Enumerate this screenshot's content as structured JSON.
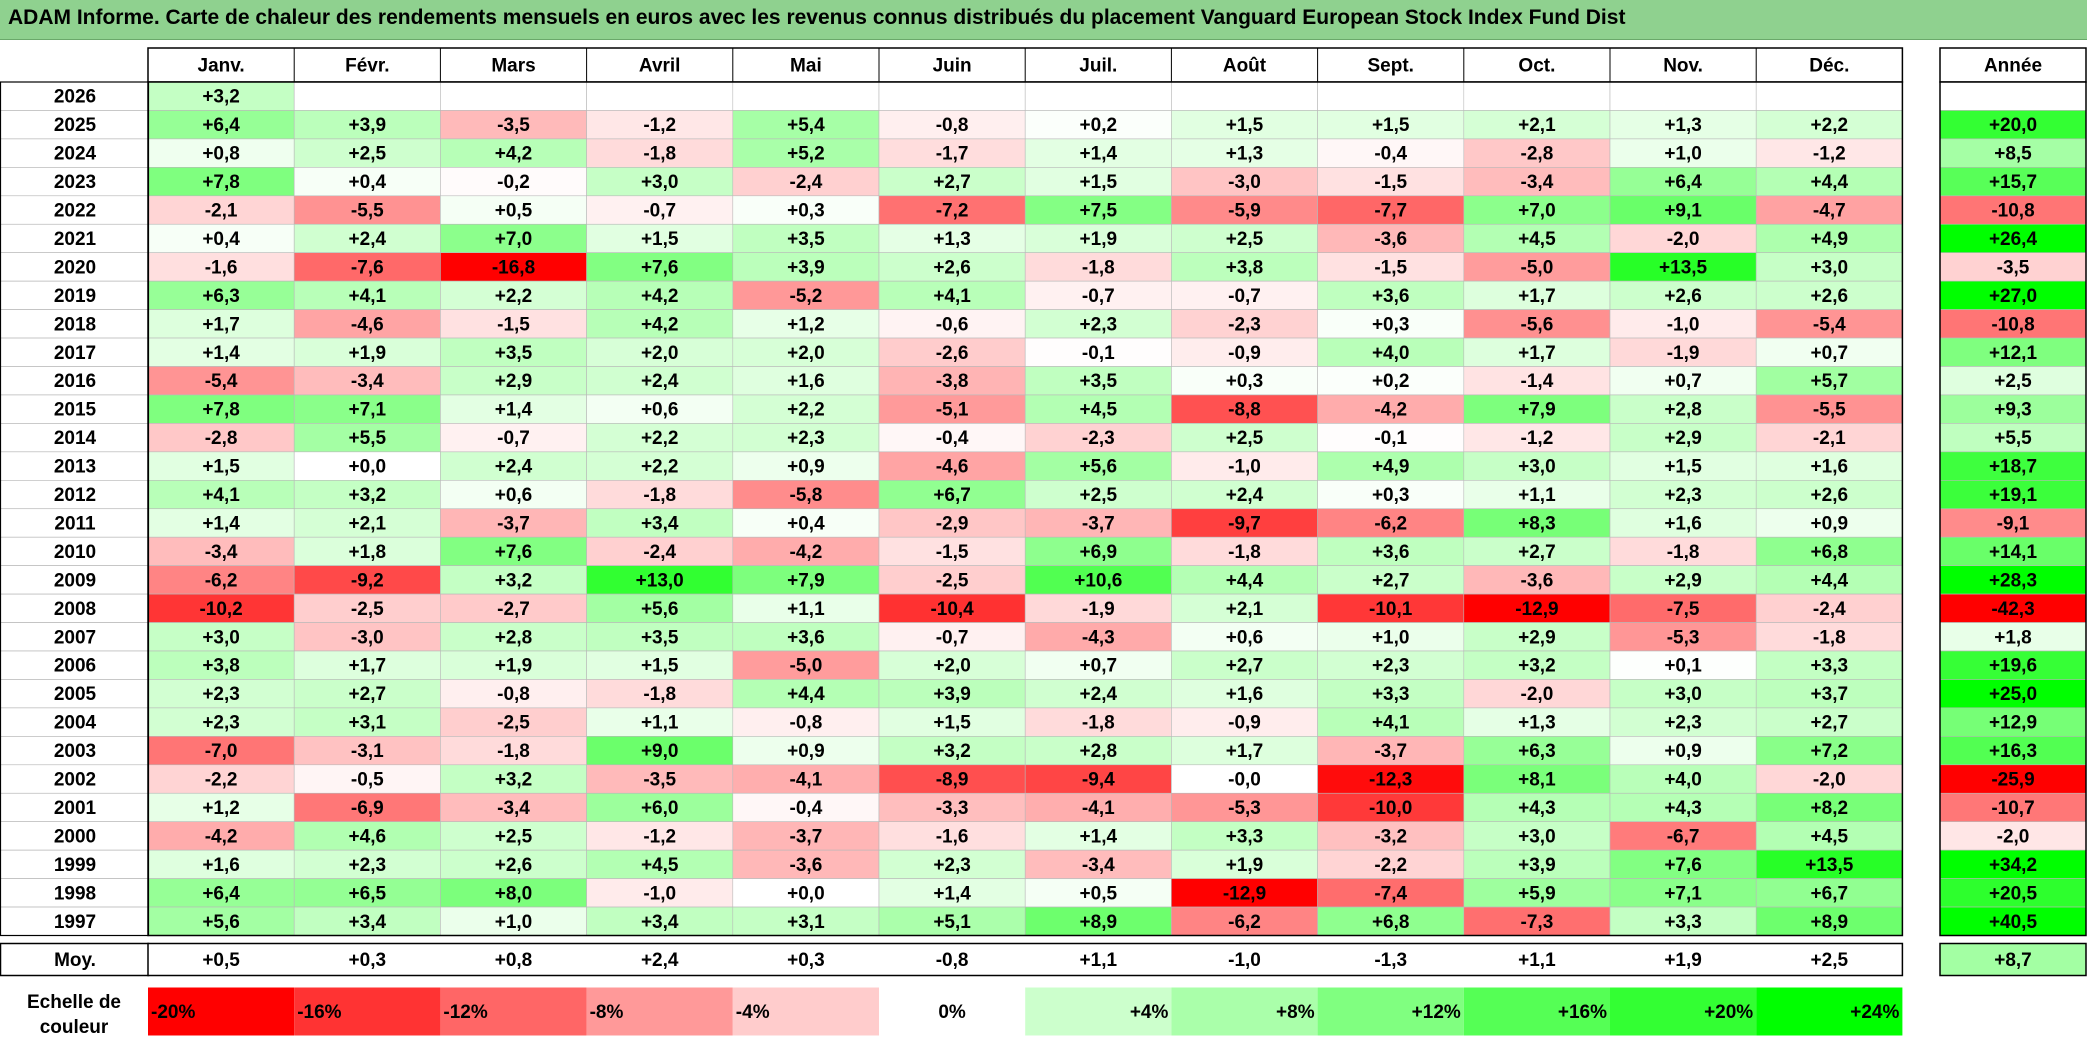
{
  "title": "ADAM Informe. Carte de chaleur des rendements mensuels en euros avec les revenus connus distribués du placement Vanguard European Stock Index Fund Dist",
  "chart_data": {
    "type": "heatmap",
    "months": [
      "Janv.",
      "Févr.",
      "Mars",
      "Avril",
      "Mai",
      "Juin",
      "Juil.",
      "Août",
      "Sept.",
      "Oct.",
      "Nov.",
      "Déc."
    ],
    "annual_label": "Année",
    "average_label": "Moy.",
    "scale_label": "Echelle de couleur",
    "rows": [
      {
        "year": "2026",
        "values": [
          "+3,2",
          "",
          "",
          "",
          "",
          "",
          "",
          "",
          "",
          "",
          "",
          ""
        ],
        "annual": ""
      },
      {
        "year": "2025",
        "values": [
          "+6,4",
          "+3,9",
          "-3,5",
          "-1,2",
          "+5,4",
          "-0,8",
          "+0,2",
          "+1,5",
          "+1,5",
          "+2,1",
          "+1,3",
          "+2,2"
        ],
        "annual": "+20,0"
      },
      {
        "year": "2024",
        "values": [
          "+0,8",
          "+2,5",
          "+4,2",
          "-1,8",
          "+5,2",
          "-1,7",
          "+1,4",
          "+1,3",
          "-0,4",
          "-2,8",
          "+1,0",
          "-1,2"
        ],
        "annual": "+8,5"
      },
      {
        "year": "2023",
        "values": [
          "+7,8",
          "+0,4",
          "-0,2",
          "+3,0",
          "-2,4",
          "+2,7",
          "+1,5",
          "-3,0",
          "-1,5",
          "-3,4",
          "+6,4",
          "+4,4"
        ],
        "annual": "+15,7"
      },
      {
        "year": "2022",
        "values": [
          "-2,1",
          "-5,5",
          "+0,5",
          "-0,7",
          "+0,3",
          "-7,2",
          "+7,5",
          "-5,9",
          "-7,7",
          "+7,0",
          "+9,1",
          "-4,7"
        ],
        "annual": "-10,8"
      },
      {
        "year": "2021",
        "values": [
          "+0,4",
          "+2,4",
          "+7,0",
          "+1,5",
          "+3,5",
          "+1,3",
          "+1,9",
          "+2,5",
          "-3,6",
          "+4,5",
          "-2,0",
          "+4,9"
        ],
        "annual": "+26,4"
      },
      {
        "year": "2020",
        "values": [
          "-1,6",
          "-7,6",
          "-16,8",
          "+7,6",
          "+3,9",
          "+2,6",
          "-1,8",
          "+3,8",
          "-1,5",
          "-5,0",
          "+13,5",
          "+3,0"
        ],
        "annual": "-3,5"
      },
      {
        "year": "2019",
        "values": [
          "+6,3",
          "+4,1",
          "+2,2",
          "+4,2",
          "-5,2",
          "+4,1",
          "-0,7",
          "-0,7",
          "+3,6",
          "+1,7",
          "+2,6",
          "+2,6"
        ],
        "annual": "+27,0"
      },
      {
        "year": "2018",
        "values": [
          "+1,7",
          "-4,6",
          "-1,5",
          "+4,2",
          "+1,2",
          "-0,6",
          "+2,3",
          "-2,3",
          "+0,3",
          "-5,6",
          "-1,0",
          "-5,4"
        ],
        "annual": "-10,8"
      },
      {
        "year": "2017",
        "values": [
          "+1,4",
          "+1,9",
          "+3,5",
          "+2,0",
          "+2,0",
          "-2,6",
          "-0,1",
          "-0,9",
          "+4,0",
          "+1,7",
          "-1,9",
          "+0,7"
        ],
        "annual": "+12,1"
      },
      {
        "year": "2016",
        "values": [
          "-5,4",
          "-3,4",
          "+2,9",
          "+2,4",
          "+1,6",
          "-3,8",
          "+3,5",
          "+0,3",
          "+0,2",
          "-1,4",
          "+0,7",
          "+5,7"
        ],
        "annual": "+2,5"
      },
      {
        "year": "2015",
        "values": [
          "+7,8",
          "+7,1",
          "+1,4",
          "+0,6",
          "+2,2",
          "-5,1",
          "+4,5",
          "-8,8",
          "-4,2",
          "+7,9",
          "+2,8",
          "-5,5"
        ],
        "annual": "+9,3"
      },
      {
        "year": "2014",
        "values": [
          "-2,8",
          "+5,5",
          "-0,7",
          "+2,2",
          "+2,3",
          "-0,4",
          "-2,3",
          "+2,5",
          "-0,1",
          "-1,2",
          "+2,9",
          "-2,1"
        ],
        "annual": "+5,5"
      },
      {
        "year": "2013",
        "values": [
          "+1,5",
          "+0,0",
          "+2,4",
          "+2,2",
          "+0,9",
          "-4,6",
          "+5,6",
          "-1,0",
          "+4,9",
          "+3,0",
          "+1,5",
          "+1,6"
        ],
        "annual": "+18,7"
      },
      {
        "year": "2012",
        "values": [
          "+4,1",
          "+3,2",
          "+0,6",
          "-1,8",
          "-5,8",
          "+6,7",
          "+2,5",
          "+2,4",
          "+0,3",
          "+1,1",
          "+2,3",
          "+2,6"
        ],
        "annual": "+19,1"
      },
      {
        "year": "2011",
        "values": [
          "+1,4",
          "+2,1",
          "-3,7",
          "+3,4",
          "+0,4",
          "-2,9",
          "-3,7",
          "-9,7",
          "-6,2",
          "+8,3",
          "+1,6",
          "+0,9"
        ],
        "annual": "-9,1"
      },
      {
        "year": "2010",
        "values": [
          "-3,4",
          "+1,8",
          "+7,6",
          "-2,4",
          "-4,2",
          "-1,5",
          "+6,9",
          "-1,8",
          "+3,6",
          "+2,7",
          "-1,8",
          "+6,8"
        ],
        "annual": "+14,1"
      },
      {
        "year": "2009",
        "values": [
          "-6,2",
          "-9,2",
          "+3,2",
          "+13,0",
          "+7,9",
          "-2,5",
          "+10,6",
          "+4,4",
          "+2,7",
          "-3,6",
          "+2,9",
          "+4,4"
        ],
        "annual": "+28,3"
      },
      {
        "year": "2008",
        "values": [
          "-10,2",
          "-2,5",
          "-2,7",
          "+5,6",
          "+1,1",
          "-10,4",
          "-1,9",
          "+2,1",
          "-10,1",
          "-12,9",
          "-7,5",
          "-2,4"
        ],
        "annual": "-42,3"
      },
      {
        "year": "2007",
        "values": [
          "+3,0",
          "-3,0",
          "+2,8",
          "+3,5",
          "+3,6",
          "-0,7",
          "-4,3",
          "+0,6",
          "+1,0",
          "+2,9",
          "-5,3",
          "-1,8"
        ],
        "annual": "+1,8"
      },
      {
        "year": "2006",
        "values": [
          "+3,8",
          "+1,7",
          "+1,9",
          "+1,5",
          "-5,0",
          "+2,0",
          "+0,7",
          "+2,7",
          "+2,3",
          "+3,2",
          "+0,1",
          "+3,3"
        ],
        "annual": "+19,6"
      },
      {
        "year": "2005",
        "values": [
          "+2,3",
          "+2,7",
          "-0,8",
          "-1,8",
          "+4,4",
          "+3,9",
          "+2,4",
          "+1,6",
          "+3,3",
          "-2,0",
          "+3,0",
          "+3,7"
        ],
        "annual": "+25,0"
      },
      {
        "year": "2004",
        "values": [
          "+2,3",
          "+3,1",
          "-2,5",
          "+1,1",
          "-0,8",
          "+1,5",
          "-1,8",
          "-0,9",
          "+4,1",
          "+1,3",
          "+2,3",
          "+2,7"
        ],
        "annual": "+12,9"
      },
      {
        "year": "2003",
        "values": [
          "-7,0",
          "-3,1",
          "-1,8",
          "+9,0",
          "+0,9",
          "+3,2",
          "+2,8",
          "+1,7",
          "-3,7",
          "+6,3",
          "+0,9",
          "+7,2"
        ],
        "annual": "+16,3"
      },
      {
        "year": "2002",
        "values": [
          "-2,2",
          "-0,5",
          "+3,2",
          "-3,5",
          "-4,1",
          "-8,9",
          "-9,4",
          "-0,0",
          "-12,3",
          "+8,1",
          "+4,0",
          "-2,0"
        ],
        "annual": "-25,9"
      },
      {
        "year": "2001",
        "values": [
          "+1,2",
          "-6,9",
          "-3,4",
          "+6,0",
          "-0,4",
          "-3,3",
          "-4,1",
          "-5,3",
          "-10,0",
          "+4,3",
          "+4,3",
          "+8,2"
        ],
        "annual": "-10,7"
      },
      {
        "year": "2000",
        "values": [
          "-4,2",
          "+4,6",
          "+2,5",
          "-1,2",
          "-3,7",
          "-1,6",
          "+1,4",
          "+3,3",
          "-3,2",
          "+3,0",
          "-6,7",
          "+4,5"
        ],
        "annual": "-2,0"
      },
      {
        "year": "1999",
        "values": [
          "+1,6",
          "+2,3",
          "+2,6",
          "+4,5",
          "-3,6",
          "+2,3",
          "-3,4",
          "+1,9",
          "-2,2",
          "+3,9",
          "+7,6",
          "+13,5"
        ],
        "annual": "+34,2"
      },
      {
        "year": "1998",
        "values": [
          "+6,4",
          "+6,5",
          "+8,0",
          "-1,0",
          "+0,0",
          "+1,4",
          "+0,5",
          "-12,9",
          "-7,4",
          "+5,9",
          "+7,1",
          "+6,7"
        ],
        "annual": "+20,5"
      },
      {
        "year": "1997",
        "values": [
          "+5,6",
          "+3,4",
          "+1,0",
          "+3,4",
          "+3,1",
          "+5,1",
          "+8,9",
          "-6,2",
          "+6,8",
          "-7,3",
          "+3,3",
          "+8,9"
        ],
        "annual": "+40,5"
      }
    ],
    "average": {
      "values": [
        "+0,5",
        "+0,3",
        "+0,8",
        "+2,4",
        "+0,3",
        "-0,8",
        "+1,1",
        "-1,0",
        "-1,3",
        "+1,1",
        "+1,9",
        "+2,5"
      ],
      "annual": "+8,7"
    },
    "scale": [
      {
        "label": "-20%",
        "value": -20,
        "color": "#ff0000"
      },
      {
        "label": "-16%",
        "value": -16,
        "color": "#ff3333"
      },
      {
        "label": "-12%",
        "value": -12,
        "color": "#ff6666"
      },
      {
        "label": "-8%",
        "value": -8,
        "color": "#ff9999"
      },
      {
        "label": "-4%",
        "value": -4,
        "color": "#ffcccc"
      },
      {
        "label": "0%",
        "value": 0,
        "color": "#ffffff"
      },
      {
        "label": "+4%",
        "value": 4,
        "color": "#ccffcc"
      },
      {
        "label": "+8%",
        "value": 8,
        "color": "#aaffaa"
      },
      {
        "label": "+12%",
        "value": 12,
        "color": "#80ff80"
      },
      {
        "label": "+16%",
        "value": 16,
        "color": "#55ff55"
      },
      {
        "label": "+20%",
        "value": 20,
        "color": "#33ff33"
      },
      {
        "label": "+24%",
        "value": 24,
        "color": "#00ff00"
      }
    ]
  }
}
